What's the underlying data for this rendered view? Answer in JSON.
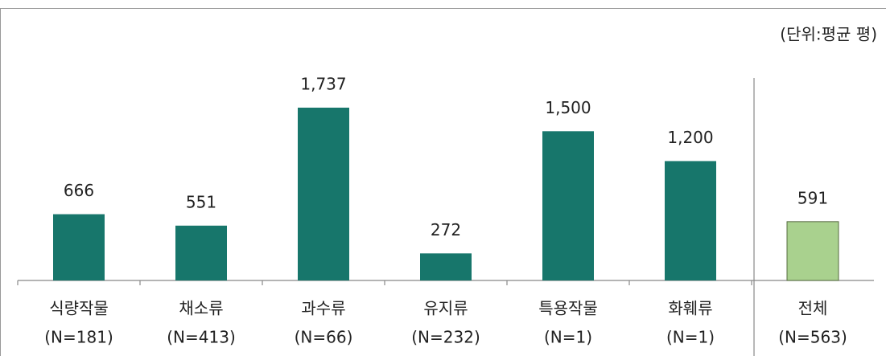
{
  "chart_data": {
    "type": "bar",
    "unit_label": "(단위:평균 평)",
    "categories": [
      "식량작물",
      "채소류",
      "과수류",
      "유지류",
      "특용작물",
      "화훼류",
      "전체"
    ],
    "n_labels": [
      "(N=181)",
      "(N=413)",
      "(N=66)",
      "(N=232)",
      "(N=1)",
      "(N=1)",
      "(N=563)"
    ],
    "values": [
      666,
      551,
      1737,
      272,
      1500,
      1200,
      591
    ],
    "value_labels": [
      "666",
      "551",
      "1,737",
      "272",
      "1,500",
      "1,200",
      "591"
    ],
    "colors": [
      "#17766b",
      "#17766b",
      "#17766b",
      "#17766b",
      "#17766b",
      "#17766b",
      "#a9d18e"
    ],
    "ylim": [
      0,
      2000
    ]
  }
}
